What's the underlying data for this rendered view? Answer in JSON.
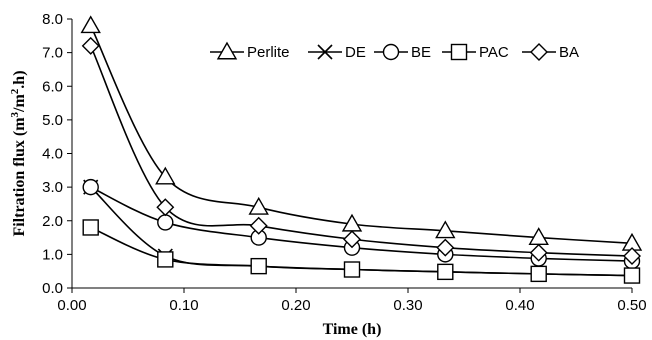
{
  "chart_data": {
    "type": "line",
    "title": "",
    "xlabel": "Time (h)",
    "ylabel": "Filtration flux (m³/m².h)",
    "xlim": [
      0.0,
      0.5
    ],
    "ylim": [
      0.0,
      8.0
    ],
    "x_ticks": [
      0.0,
      0.1,
      0.2,
      0.3,
      0.4,
      0.5
    ],
    "x_tick_labels": [
      "0.00",
      "0.10",
      "0.20",
      "0.30",
      "0.40",
      "0.50"
    ],
    "y_ticks": [
      0,
      1,
      2,
      3,
      4,
      5,
      6,
      7,
      8
    ],
    "y_tick_labels": [
      "0.0",
      "1.0",
      "2.0",
      "3.0",
      "4.0",
      "5.0",
      "6.0",
      "7.0",
      "8.0"
    ],
    "grid": false,
    "legend_position": "top-right",
    "x": [
      0.0167,
      0.0833,
      0.1667,
      0.25,
      0.3333,
      0.4167,
      0.5
    ],
    "series": [
      {
        "name": "Perlite",
        "marker": "triangle",
        "values": [
          7.8,
          3.3,
          2.4,
          1.9,
          1.7,
          1.5,
          1.33
        ]
      },
      {
        "name": "DE",
        "marker": "x",
        "values": [
          3.0,
          0.95,
          0.65,
          0.55,
          0.48,
          0.42,
          0.37
        ]
      },
      {
        "name": "BE",
        "marker": "circle",
        "values": [
          3.0,
          1.95,
          1.5,
          1.2,
          1.0,
          0.88,
          0.8
        ]
      },
      {
        "name": "PAC",
        "marker": "square",
        "values": [
          1.8,
          0.85,
          0.65,
          0.55,
          0.48,
          0.42,
          0.37
        ]
      },
      {
        "name": "BA",
        "marker": "diamond",
        "values": [
          7.2,
          2.4,
          1.85,
          1.45,
          1.2,
          1.05,
          0.95
        ]
      }
    ]
  }
}
